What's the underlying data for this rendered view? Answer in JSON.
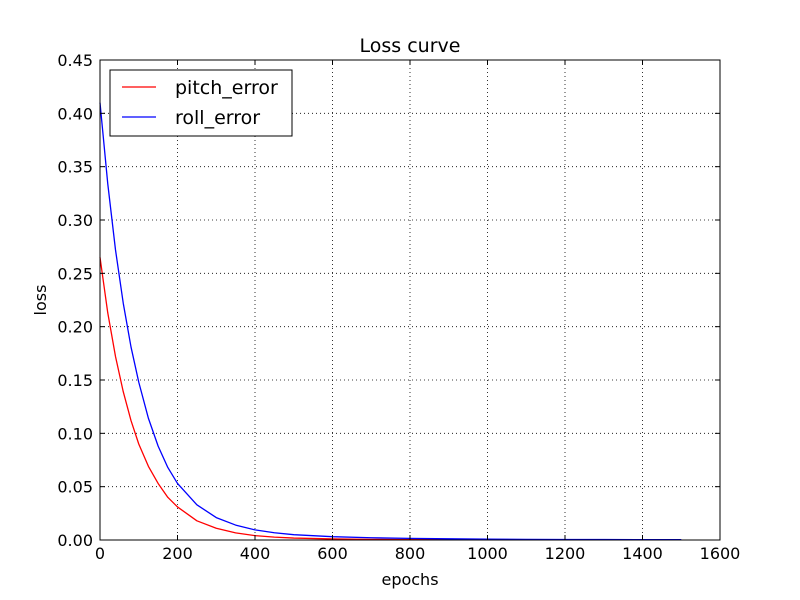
{
  "chart_data": {
    "type": "line",
    "title": "Loss curve",
    "xlabel": "epochs",
    "ylabel": "loss",
    "xlim": [
      0,
      1600
    ],
    "ylim": [
      0,
      0.45
    ],
    "xticks": [
      0,
      200,
      400,
      600,
      800,
      1000,
      1200,
      1400,
      1600
    ],
    "yticks": [
      0.0,
      0.05,
      0.1,
      0.15,
      0.2,
      0.25,
      0.3,
      0.35,
      0.4,
      0.45
    ],
    "xtick_labels": [
      "0",
      "200",
      "400",
      "600",
      "800",
      "1000",
      "1200",
      "1400",
      "1600"
    ],
    "ytick_labels": [
      "0.00",
      "0.05",
      "0.10",
      "0.15",
      "0.20",
      "0.25",
      "0.30",
      "0.35",
      "0.40",
      "0.45"
    ],
    "grid": true,
    "legend_position": "top-left",
    "x": [
      0,
      20,
      40,
      60,
      80,
      100,
      125,
      150,
      175,
      200,
      250,
      300,
      350,
      400,
      450,
      500,
      600,
      700,
      800,
      900,
      1000,
      1100,
      1200,
      1300,
      1400,
      1500
    ],
    "series": [
      {
        "name": "pitch_error",
        "color": "#ff0000",
        "values": [
          0.265,
          0.213,
          0.172,
          0.139,
          0.112,
          0.09,
          0.069,
          0.053,
          0.04,
          0.031,
          0.018,
          0.011,
          0.0067,
          0.0041,
          0.0027,
          0.0018,
          0.001,
          0.0006,
          0.0004,
          0.0003,
          0.0002,
          0.0002,
          0.0001,
          0.0001,
          0.0001,
          0.0001
        ]
      },
      {
        "name": "roll_error",
        "color": "#0000ff",
        "values": [
          0.41,
          0.334,
          0.272,
          0.222,
          0.181,
          0.148,
          0.114,
          0.088,
          0.068,
          0.053,
          0.033,
          0.021,
          0.014,
          0.0095,
          0.0068,
          0.005,
          0.0031,
          0.0021,
          0.0015,
          0.0011,
          0.0008,
          0.0006,
          0.0005,
          0.0004,
          0.0003,
          0.0003
        ]
      }
    ]
  }
}
